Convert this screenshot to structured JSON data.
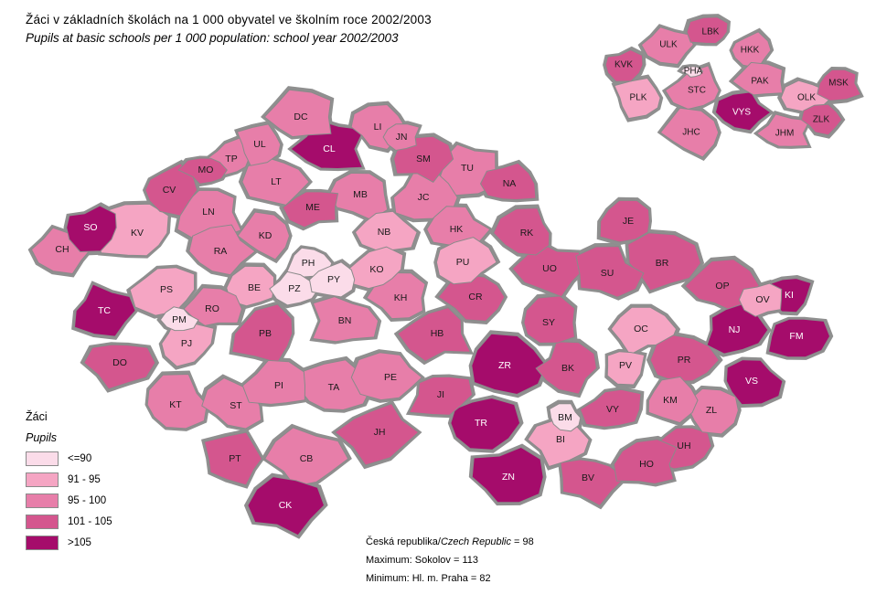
{
  "title": {
    "cs": "Žáci v základních školách na 1 000 obyvatel ve školním roce 2002/2003",
    "en": "Pupils at basic schools per 1 000 population: school year 2002/2003"
  },
  "legend": {
    "title_cs": "Žáci",
    "title_en": "Pupils"
  },
  "classes": [
    {
      "label": "<=90",
      "color": "#fbdce9"
    },
    {
      "label": "91 - 95",
      "color": "#f5a5c3"
    },
    {
      "label": "95 - 100",
      "color": "#e77ea9"
    },
    {
      "label": "101 - 105",
      "color": "#d4568e"
    },
    {
      "label": ">105",
      "color": "#a50c6b"
    }
  ],
  "footer": {
    "country_cs": "Česká republika/",
    "country_en": "Czech Republic",
    "country_value": " = 98",
    "maximum": "Maximum: Sokolov = 113",
    "minimum": "Minimum: Hl. m. Praha = 82"
  },
  "map": {
    "district_columns": [
      "code",
      "class_index",
      "x",
      "y",
      "size_scale"
    ],
    "border_color": "#8a8a8a",
    "districts": [
      [
        "SO",
        4,
        99,
        249,
        0.85
      ],
      [
        "CH",
        2,
        68,
        273,
        0.9
      ],
      [
        "KV",
        1,
        150,
        255,
        1.15
      ],
      [
        "CV",
        3,
        185,
        208,
        0.95
      ],
      [
        "MO",
        3,
        225,
        186,
        0.7
      ],
      [
        "TP",
        2,
        253,
        174,
        0.75
      ],
      [
        "UL",
        2,
        284,
        158,
        0.75
      ],
      [
        "DC",
        2,
        329,
        128,
        0.95
      ],
      [
        "LT",
        2,
        302,
        199,
        0.95
      ],
      [
        "LN",
        2,
        228,
        232,
        1.05
      ],
      [
        "RA",
        2,
        241,
        275,
        0.95
      ],
      [
        "KD",
        2,
        290,
        258,
        0.85
      ],
      [
        "CL",
        4,
        360,
        163,
        1.1
      ],
      [
        "LI",
        2,
        413,
        139,
        0.85
      ],
      [
        "JN",
        2,
        439,
        150,
        0.6
      ],
      [
        "SM",
        3,
        463,
        174,
        0.85
      ],
      [
        "TU",
        2,
        511,
        184,
        1.0
      ],
      [
        "NA",
        3,
        557,
        201,
        0.85
      ],
      [
        "ME",
        3,
        342,
        227,
        0.8
      ],
      [
        "MB",
        2,
        394,
        213,
        0.9
      ],
      [
        "JC",
        2,
        463,
        216,
        0.95
      ],
      [
        "NB",
        1,
        420,
        254,
        0.9
      ],
      [
        "HK",
        2,
        499,
        251,
        0.9
      ],
      [
        "KO",
        1,
        412,
        295,
        0.85
      ],
      [
        "KH",
        2,
        438,
        326,
        0.9
      ],
      [
        "PH",
        0,
        337,
        288,
        0.75
      ],
      [
        "PZ",
        0,
        322,
        316,
        0.7
      ],
      [
        "PY",
        0,
        365,
        306,
        0.7
      ],
      [
        "BE",
        1,
        278,
        315,
        0.8
      ],
      [
        "BN",
        2,
        377,
        351,
        1.05
      ],
      [
        "PB",
        3,
        290,
        365,
        1.1
      ],
      [
        "RO",
        2,
        232,
        338,
        0.8
      ],
      [
        "PS",
        1,
        182,
        317,
        1.05
      ],
      [
        "PM",
        0,
        196,
        350,
        0.5
      ],
      [
        "PJ",
        1,
        204,
        376,
        0.9
      ],
      [
        "TC",
        4,
        114,
        340,
        1.0
      ],
      [
        "DO",
        3,
        131,
        397,
        0.95
      ],
      [
        "KT",
        2,
        192,
        443,
        1.15
      ],
      [
        "ST",
        2,
        258,
        444,
        1.0
      ],
      [
        "PI",
        2,
        305,
        422,
        0.95
      ],
      [
        "TA",
        2,
        365,
        424,
        1.0
      ],
      [
        "CB",
        2,
        335,
        502,
        1.1
      ],
      [
        "CK",
        4,
        312,
        553,
        1.05
      ],
      [
        "PT",
        3,
        257,
        502,
        1.0
      ],
      [
        "JH",
        3,
        415,
        473,
        1.15
      ],
      [
        "PE",
        2,
        427,
        413,
        1.0
      ],
      [
        "JI",
        3,
        482,
        432,
        1.0
      ],
      [
        "HB",
        3,
        478,
        365,
        1.05
      ],
      [
        "ZR",
        4,
        552,
        400,
        1.15
      ],
      [
        "TR",
        4,
        526,
        463,
        1.1
      ],
      [
        "ZN",
        4,
        556,
        522,
        1.15
      ],
      [
        "BI",
        1,
        613,
        481,
        0.95
      ],
      [
        "BM",
        0,
        618,
        457,
        0.5
      ],
      [
        "BK",
        3,
        621,
        403,
        0.95
      ],
      [
        "VY",
        3,
        670,
        448,
        0.9
      ],
      [
        "PV",
        1,
        684,
        400,
        0.7
      ],
      [
        "OC",
        1,
        701,
        360,
        0.9
      ],
      [
        "SY",
        3,
        600,
        353,
        0.95
      ],
      [
        "CR",
        3,
        520,
        325,
        1.0
      ],
      [
        "UO",
        3,
        601,
        294,
        1.0
      ],
      [
        "PU",
        1,
        506,
        287,
        0.9
      ],
      [
        "RK",
        3,
        576,
        255,
        0.9
      ],
      [
        "SU",
        3,
        664,
        299,
        1.0
      ],
      [
        "JE",
        3,
        687,
        242,
        0.9
      ],
      [
        "BR",
        3,
        724,
        288,
        1.15
      ],
      [
        "OP",
        3,
        790,
        313,
        0.95
      ],
      [
        "OV",
        1,
        834,
        328,
        0.6
      ],
      [
        "KI",
        4,
        863,
        323,
        0.7
      ],
      [
        "NJ",
        4,
        803,
        361,
        0.95
      ],
      [
        "FM",
        4,
        871,
        368,
        1.0
      ],
      [
        "VS",
        4,
        822,
        417,
        1.0
      ],
      [
        "PR",
        3,
        748,
        394,
        0.9
      ],
      [
        "KM",
        2,
        733,
        438,
        0.85
      ],
      [
        "ZL",
        2,
        778,
        449,
        0.9
      ],
      [
        "UH",
        3,
        748,
        488,
        0.95
      ],
      [
        "HO",
        3,
        707,
        508,
        0.95
      ],
      [
        "BV",
        3,
        643,
        523,
        1.0
      ]
    ]
  },
  "inset": {
    "region_columns": [
      "code",
      "class_index",
      "x",
      "y",
      "size_scale"
    ],
    "regions": [
      [
        "KVK",
        3,
        682,
        71,
        0.8
      ],
      [
        "ULK",
        2,
        731,
        49,
        1.0
      ],
      [
        "LBK",
        3,
        777,
        35,
        0.8
      ],
      [
        "HKK",
        2,
        820,
        55,
        0.9
      ],
      [
        "PHA",
        0,
        758,
        78,
        0.4
      ],
      [
        "STC",
        2,
        762,
        99,
        1.2
      ],
      [
        "PLK",
        1,
        698,
        107,
        1.0
      ],
      [
        "PAK",
        2,
        831,
        89,
        0.9
      ],
      [
        "OLK",
        1,
        882,
        107,
        0.9
      ],
      [
        "MSK",
        3,
        917,
        91,
        0.9
      ],
      [
        "VYS",
        4,
        811,
        123,
        1.0
      ],
      [
        "JHC",
        2,
        756,
        145,
        1.2
      ],
      [
        "JHM",
        2,
        858,
        146,
        1.0
      ],
      [
        "ZLK",
        3,
        898,
        131,
        0.8
      ]
    ]
  }
}
